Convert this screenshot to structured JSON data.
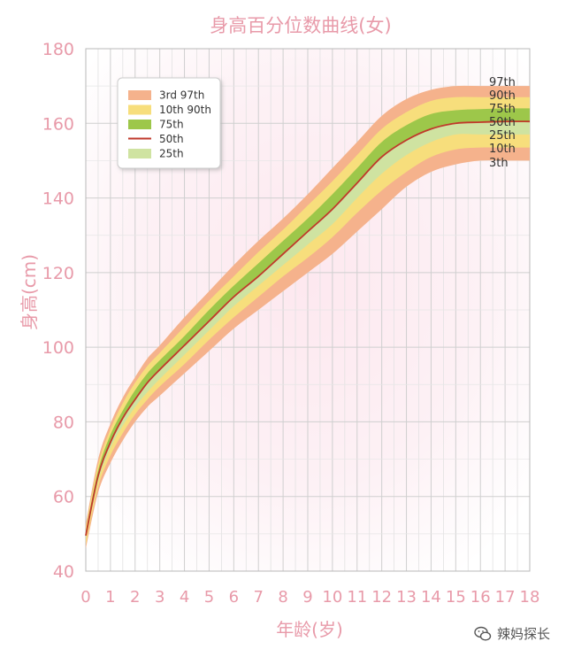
{
  "chart_data": {
    "type": "area",
    "title": "身高百分位数曲线(女)",
    "xlabel": "年龄(岁)",
    "ylabel": "身高(cm)",
    "xlim": [
      0,
      18
    ],
    "ylim": [
      40,
      180
    ],
    "x_ticks": [
      0,
      1,
      2,
      3,
      4,
      5,
      6,
      7,
      8,
      9,
      10,
      11,
      12,
      13,
      14,
      15,
      16,
      17,
      18
    ],
    "y_ticks": [
      40,
      60,
      80,
      100,
      120,
      140,
      160,
      180
    ],
    "grid": true,
    "legend_position": "top-left",
    "legend": [
      {
        "key": "p3_97",
        "label": "3rd   97th",
        "color": "#f5b28c",
        "kind": "band"
      },
      {
        "key": "p10_90",
        "label": "10th  90th",
        "color": "#f7de7c",
        "kind": "band"
      },
      {
        "key": "p75",
        "label": "75th",
        "color": "#9dc74a",
        "kind": "band"
      },
      {
        "key": "p50",
        "label": "50th",
        "color": "#c0392b",
        "kind": "line"
      },
      {
        "key": "p25",
        "label": "25th",
        "color": "#cfe3a1",
        "kind": "band"
      }
    ],
    "x": [
      0,
      0.5,
      1,
      1.5,
      2,
      2.5,
      3,
      4,
      5,
      6,
      7,
      8,
      9,
      10,
      11,
      12,
      13,
      14,
      15,
      16,
      17,
      18
    ],
    "series": [
      {
        "name": "3th",
        "values": [
          46,
          61,
          69,
          75,
          80,
          84,
          87,
          93,
          99,
          105,
          110,
          115,
          120,
          125,
          131,
          137,
          143,
          147,
          149,
          150,
          150,
          150
        ]
      },
      {
        "name": "10th",
        "values": [
          47,
          62.5,
          71,
          77,
          82,
          86,
          89.5,
          95.5,
          102,
          108,
          113.5,
          119,
          124,
          129.5,
          136,
          142,
          147,
          151,
          153,
          153.5,
          153.5,
          153.5
        ]
      },
      {
        "name": "25th",
        "values": [
          48.5,
          64,
          73,
          79,
          84,
          88,
          91.5,
          98,
          104.5,
          111,
          116.5,
          122,
          127.5,
          133,
          140,
          146.5,
          151.5,
          155,
          157,
          157,
          157,
          157
        ]
      },
      {
        "name": "50th",
        "values": [
          49.5,
          65.5,
          74.5,
          81,
          86,
          90.5,
          94,
          100.5,
          107,
          113.5,
          119,
          125,
          131,
          137,
          144,
          151,
          155.5,
          158.5,
          160,
          160.3,
          160.5,
          160.5
        ]
      },
      {
        "name": "75th",
        "values": [
          50.5,
          67,
          76.5,
          83,
          88.5,
          93,
          96.5,
          103,
          110,
          116.5,
          122.5,
          128.5,
          134.5,
          141,
          148,
          155,
          159.5,
          162.5,
          163.5,
          163.8,
          164,
          164
        ]
      },
      {
        "name": "90th",
        "values": [
          51.5,
          68.5,
          78,
          85,
          90.5,
          95,
          98.5,
          105.5,
          112.5,
          119,
          125.5,
          131.5,
          138,
          144.5,
          151.5,
          158.5,
          163,
          166,
          167,
          167,
          167,
          167
        ]
      },
      {
        "name": "97th",
        "values": [
          52.5,
          70,
          79.5,
          86.5,
          92,
          97,
          100.5,
          108,
          115,
          122,
          128.5,
          134.5,
          141,
          148,
          155,
          162,
          166.5,
          169,
          170,
          170,
          170,
          170
        ]
      }
    ],
    "end_labels": [
      "97th",
      "90th",
      "75th",
      "50th",
      "25th",
      "10th",
      "3th"
    ]
  },
  "watermark": {
    "text": "辣妈探长"
  }
}
